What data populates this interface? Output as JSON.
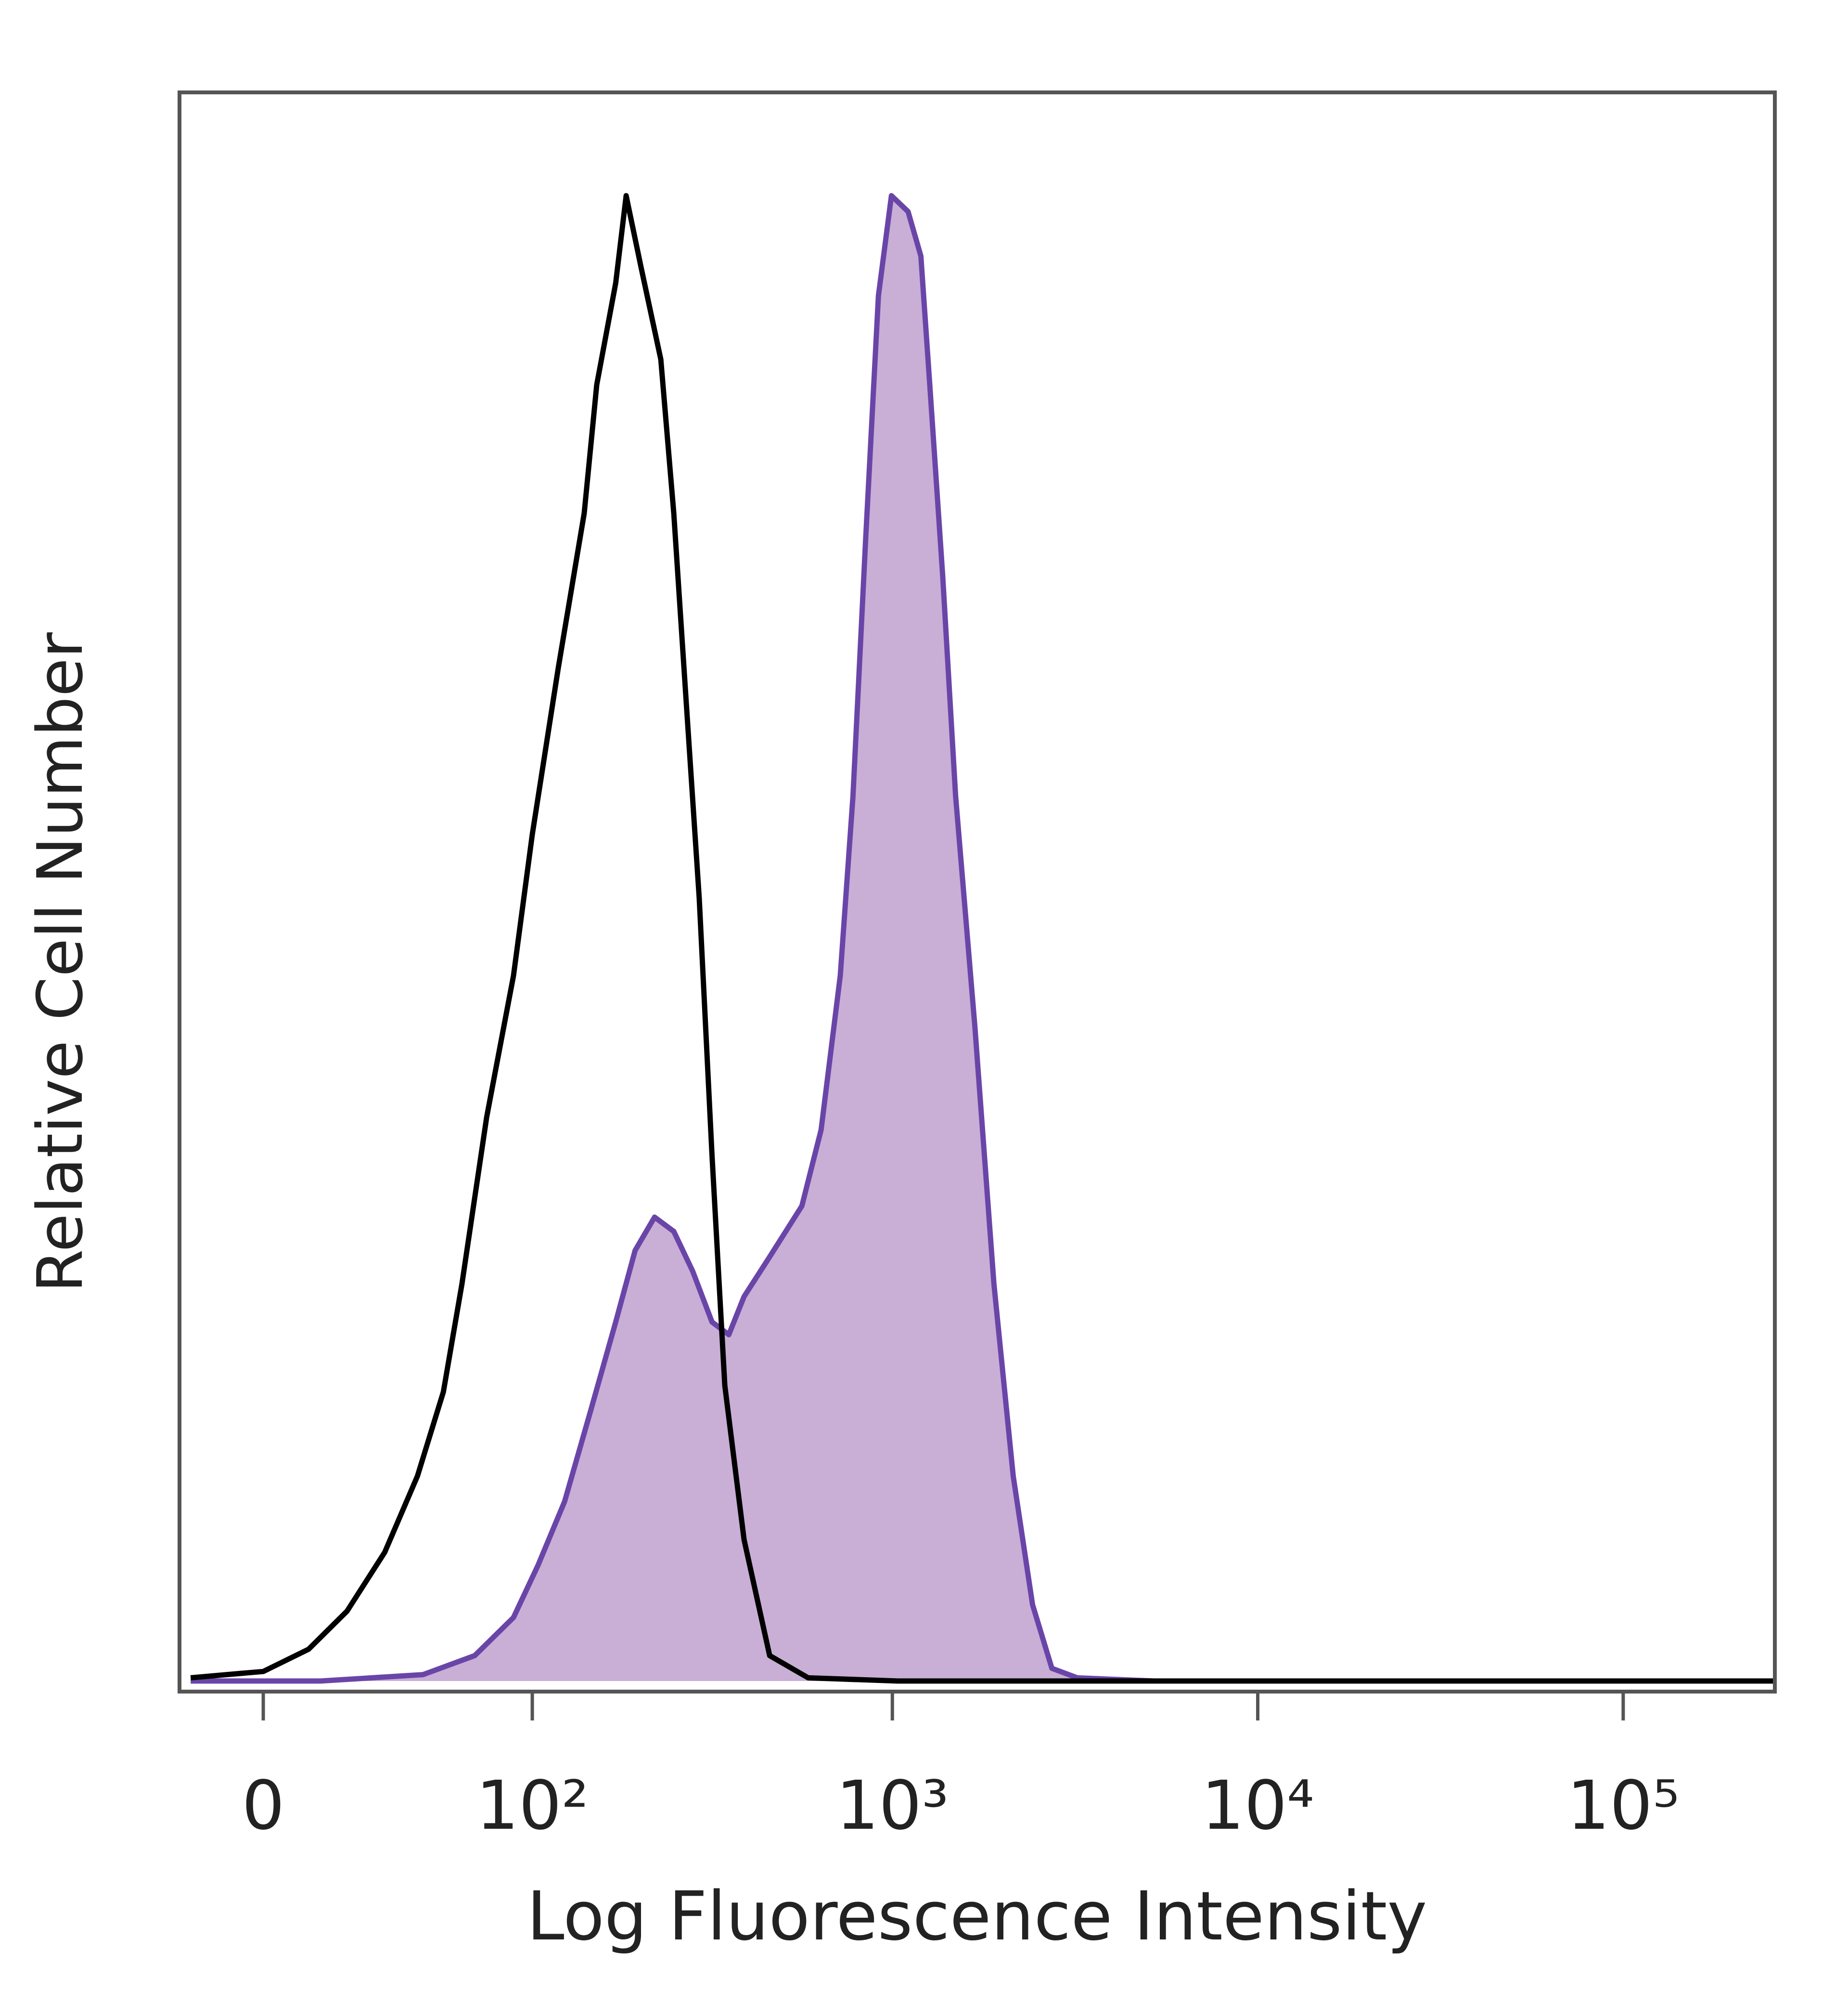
{
  "chart_data": {
    "type": "histogram-overlay",
    "xlabel": "Log Fluorescence Intensity",
    "ylabel": "Relative Cell Number",
    "xscale": "biexponential",
    "xlim": [
      -21,
      260000
    ],
    "ylim": [
      0,
      100
    ],
    "xticks": [
      0,
      {
        "value": 100,
        "label": "10²"
      },
      {
        "value": 1000,
        "label": "10³"
      },
      {
        "value": 10000,
        "label": "10⁴"
      },
      {
        "value": 100000,
        "label": "10⁵"
      }
    ],
    "series": [
      {
        "color": "#6a45a8",
        "fill_color": "#c9aed6",
        "x": [
          -18,
          14,
          45,
          67,
          88,
          104,
          124,
          147,
          173,
          196,
          222,
          251,
          283,
          320,
          356,
          392,
          461,
          565,
          638,
          720,
          780,
          845,
          916,
          994,
          1104,
          1197,
          1266,
          1374,
          1490,
          1682,
          1897,
          2142,
          2420,
          2733,
          3208,
          5206,
          260000
        ],
        "values": [
          0,
          0,
          0.4,
          1.6,
          4.0,
          7.3,
          11.3,
          17.0,
          22.6,
          27.1,
          29.2,
          28.3,
          25.8,
          22.6,
          21.8,
          24.2,
          26.7,
          29.9,
          34.7,
          44.4,
          55.7,
          71.9,
          87.2,
          93.5,
          92.5,
          89.7,
          81.6,
          69.5,
          55.7,
          41.2,
          25.0,
          12.9,
          4.8,
          0.8,
          0.2,
          0,
          0
        ]
      },
      {
        "color": "#000000",
        "x": [
          -18,
          -9,
          0,
          11,
          21,
          32,
          43,
          53,
          61,
          73,
          88,
          100,
          119,
          141,
          153,
          173,
          185,
          204,
          231,
          251,
          272,
          295,
          320,
          347,
          392,
          461,
          588,
          1034,
          260000
        ],
        "values": [
          0.2,
          0.4,
          0.6,
          2.0,
          4.4,
          8.1,
          12.9,
          18.2,
          25.0,
          35.5,
          44.4,
          53.3,
          63.8,
          73.5,
          81.6,
          88.0,
          93.5,
          88.9,
          83.2,
          73.5,
          61.4,
          49.3,
          33.1,
          18.6,
          8.9,
          1.6,
          0.2,
          0,
          0
        ]
      }
    ]
  }
}
